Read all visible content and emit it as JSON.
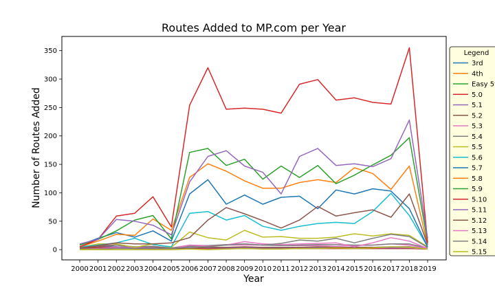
{
  "chart_data": {
    "type": "line",
    "title": "Routes Added to MP.com per Year",
    "xlabel": "Year",
    "ylabel": "Number of Routes Added",
    "x": [
      2000,
      2001,
      2002,
      2003,
      2004,
      2005,
      2006,
      2007,
      2008,
      2009,
      2010,
      2011,
      2012,
      2013,
      2014,
      2015,
      2016,
      2017,
      2018,
      2019
    ],
    "xticks": [
      "2000",
      "2001",
      "2002",
      "2003",
      "2004",
      "2005",
      "2006",
      "2007",
      "2008",
      "2009",
      "2010",
      "2011",
      "2012",
      "2013",
      "2014",
      "2015",
      "2016",
      "2017",
      "2018",
      "2019"
    ],
    "ylim": [
      -18,
      375
    ],
    "yticks": [
      0,
      50,
      100,
      150,
      200,
      250,
      300,
      350
    ],
    "legend": {
      "title": "Legend",
      "placement": "right"
    },
    "series": [
      {
        "name": "3rd",
        "color": "#1f77b4",
        "values": [
          2,
          5,
          4,
          3,
          2,
          1,
          2,
          4,
          3,
          2,
          2,
          2,
          3,
          4,
          3,
          3,
          4,
          3,
          4,
          1
        ]
      },
      {
        "name": "4th",
        "color": "#ff7f0e",
        "values": [
          1,
          3,
          4,
          2,
          3,
          1,
          2,
          3,
          3,
          4,
          2,
          3,
          3,
          3,
          3,
          3,
          3,
          3,
          3,
          1
        ]
      },
      {
        "name": "Easy 5th",
        "color": "#2ca02c",
        "values": [
          2,
          3,
          8,
          3,
          2,
          1,
          2,
          2,
          2,
          3,
          2,
          2,
          2,
          2,
          2,
          2,
          2,
          2,
          2,
          1
        ]
      },
      {
        "name": "5.0",
        "color": "#d62728",
        "values": [
          2,
          3,
          5,
          2,
          2,
          1,
          2,
          2,
          2,
          2,
          2,
          2,
          2,
          2,
          2,
          2,
          2,
          2,
          2,
          1
        ]
      },
      {
        "name": "5.1",
        "color": "#9467bd",
        "values": [
          3,
          5,
          5,
          3,
          3,
          1,
          3,
          3,
          3,
          3,
          3,
          3,
          3,
          3,
          3,
          3,
          3,
          3,
          3,
          1
        ]
      },
      {
        "name": "5.2",
        "color": "#8c564b",
        "values": [
          3,
          5,
          8,
          4,
          5,
          2,
          2,
          4,
          4,
          5,
          4,
          4,
          4,
          5,
          4,
          4,
          4,
          5,
          5,
          1
        ]
      },
      {
        "name": "5.3",
        "color": "#e377c2",
        "values": [
          5,
          8,
          8,
          4,
          6,
          3,
          8,
          7,
          8,
          8,
          8,
          7,
          7,
          7,
          6,
          7,
          8,
          10,
          8,
          2
        ]
      },
      {
        "name": "5.4",
        "color": "#7f7f7f",
        "values": [
          4,
          7,
          8,
          5,
          6,
          3,
          6,
          7,
          9,
          10,
          8,
          7,
          8,
          9,
          9,
          8,
          8,
          10,
          10,
          3
        ]
      },
      {
        "name": "5.5",
        "color": "#bcbd22",
        "values": [
          4,
          10,
          10,
          4,
          10,
          4,
          31,
          21,
          17,
          34,
          22,
          23,
          20,
          20,
          22,
          28,
          24,
          28,
          25,
          5
        ]
      },
      {
        "name": "5.6",
        "color": "#17becf",
        "values": [
          5,
          8,
          12,
          20,
          9,
          5,
          64,
          67,
          52,
          60,
          41,
          34,
          41,
          46,
          48,
          46,
          67,
          99,
          60,
          5
        ]
      },
      {
        "name": "5.7",
        "color": "#1f77b4",
        "values": [
          8,
          20,
          30,
          22,
          33,
          15,
          98,
          123,
          80,
          96,
          80,
          92,
          94,
          72,
          105,
          98,
          107,
          103,
          72,
          5
        ]
      },
      {
        "name": "5.8",
        "color": "#ff7f0e",
        "values": [
          5,
          15,
          27,
          25,
          54,
          34,
          127,
          151,
          138,
          121,
          108,
          108,
          118,
          123,
          118,
          144,
          134,
          106,
          147,
          8
        ]
      },
      {
        "name": "5.9",
        "color": "#2ca02c",
        "values": [
          8,
          18,
          33,
          52,
          60,
          19,
          171,
          178,
          148,
          159,
          124,
          147,
          127,
          148,
          116,
          131,
          149,
          166,
          197,
          13
        ]
      },
      {
        "name": "5.10",
        "color": "#d62728",
        "values": [
          5,
          18,
          59,
          64,
          93,
          40,
          254,
          320,
          247,
          249,
          247,
          240,
          291,
          299,
          263,
          267,
          259,
          256,
          355,
          12
        ]
      },
      {
        "name": "5.11",
        "color": "#9467bd",
        "values": [
          10,
          18,
          53,
          50,
          43,
          26,
          119,
          164,
          174,
          147,
          136,
          98,
          164,
          178,
          148,
          151,
          146,
          160,
          228,
          20
        ]
      },
      {
        "name": "5.12",
        "color": "#8c564b",
        "values": [
          3,
          7,
          12,
          10,
          10,
          12,
          21,
          52,
          74,
          63,
          51,
          38,
          52,
          76,
          59,
          65,
          70,
          57,
          98,
          9
        ]
      },
      {
        "name": "5.13",
        "color": "#e377c2",
        "values": [
          1,
          2,
          3,
          2,
          2,
          1,
          8,
          6,
          8,
          14,
          10,
          9,
          10,
          11,
          12,
          5,
          12,
          21,
          15,
          2
        ]
      },
      {
        "name": "5.14",
        "color": "#7f7f7f",
        "values": [
          1,
          1,
          2,
          2,
          2,
          2,
          5,
          5,
          8,
          10,
          8,
          11,
          17,
          15,
          20,
          12,
          20,
          27,
          23,
          4
        ]
      },
      {
        "name": "5.15",
        "color": "#bcbd22",
        "values": [
          0,
          0,
          0,
          0,
          0,
          0,
          1,
          0,
          1,
          2,
          1,
          1,
          2,
          2,
          3,
          2,
          3,
          5,
          4,
          1
        ]
      }
    ]
  }
}
